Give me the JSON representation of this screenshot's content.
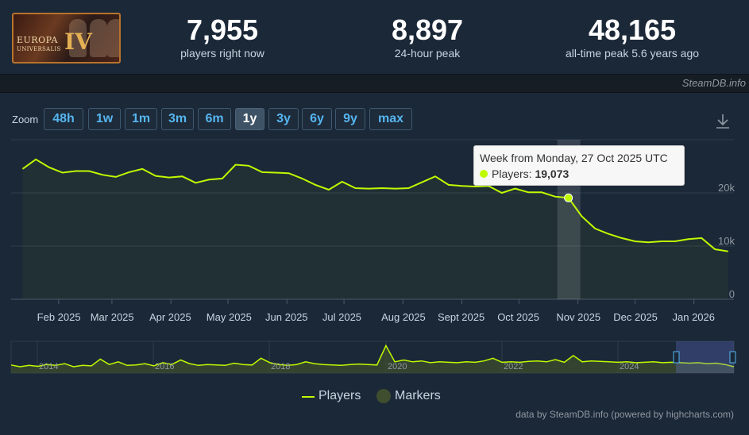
{
  "app": {
    "logo_line1": "EUROPA",
    "logo_line2": "UNIVERSALIS",
    "logo_numeral": "IV",
    "credit_top": "SteamDB.info",
    "credit_bottom": "data by SteamDB.info (powered by highcharts.com)"
  },
  "stats": [
    {
      "value": "7,955",
      "label": "players right now"
    },
    {
      "value": "8,897",
      "label": "24-hour peak"
    },
    {
      "value": "48,165",
      "label": "all-time peak 5.6 years ago"
    }
  ],
  "zoom": {
    "label": "Zoom",
    "buttons": [
      "48h",
      "1w",
      "1m",
      "3m",
      "6m",
      "1y",
      "3y",
      "6y",
      "9y",
      "max"
    ],
    "active": "1y"
  },
  "tooltip": {
    "title": "Week from Monday, 27 Oct 2025 UTC",
    "series_label": "Players: ",
    "value": "19,073"
  },
  "legend": {
    "players": "Players",
    "markers": "Markers"
  },
  "colors": {
    "series": "#bffa00",
    "marker": "#3e4e2e",
    "accent": "#55b5ef"
  },
  "icons": {
    "download": "download-icon"
  },
  "chart_data": {
    "type": "line",
    "series_name": "Players",
    "x_labels": [
      "Feb 2025",
      "Mar 2025",
      "Apr 2025",
      "May 2025",
      "Jun 2025",
      "Jul 2025",
      "Aug 2025",
      "Sept 2025",
      "Oct 2025",
      "Nov 2025",
      "Dec 2025",
      "Jan 2026"
    ],
    "y_ticks": [
      "0",
      "10k",
      "20k"
    ],
    "ylim": [
      0,
      30000
    ],
    "grid": true,
    "navigator_years": [
      "2014",
      "2016",
      "2018",
      "2020",
      "2022",
      "2024"
    ],
    "x": [
      "2025-01-13",
      "2025-01-20",
      "2025-01-27",
      "2025-02-03",
      "2025-02-10",
      "2025-02-17",
      "2025-02-24",
      "2025-03-03",
      "2025-03-10",
      "2025-03-17",
      "2025-03-24",
      "2025-03-31",
      "2025-04-07",
      "2025-04-14",
      "2025-04-21",
      "2025-04-28",
      "2025-05-05",
      "2025-05-12",
      "2025-05-19",
      "2025-05-26",
      "2025-06-02",
      "2025-06-09",
      "2025-06-16",
      "2025-06-23",
      "2025-06-30",
      "2025-07-07",
      "2025-07-14",
      "2025-07-21",
      "2025-07-28",
      "2025-08-04",
      "2025-08-11",
      "2025-08-18",
      "2025-08-25",
      "2025-09-01",
      "2025-09-08",
      "2025-09-15",
      "2025-09-22",
      "2025-09-29",
      "2025-10-06",
      "2025-10-13",
      "2025-10-20",
      "2025-10-27",
      "2025-11-03",
      "2025-11-10",
      "2025-11-17",
      "2025-11-24",
      "2025-12-01",
      "2025-12-08",
      "2025-12-15",
      "2025-12-22",
      "2025-12-29",
      "2026-01-05",
      "2026-01-12",
      "2026-01-19"
    ],
    "values": [
      24500,
      26300,
      24800,
      23800,
      24100,
      24100,
      23400,
      23000,
      23900,
      24500,
      23200,
      22900,
      23100,
      21900,
      22500,
      22700,
      25300,
      25100,
      23900,
      23800,
      23700,
      22700,
      21500,
      20600,
      22100,
      20900,
      20800,
      20900,
      20800,
      20900,
      22000,
      23100,
      21500,
      21300,
      21200,
      21300,
      20000,
      20800,
      20100,
      20100,
      19300,
      19073,
      15600,
      13300,
      12300,
      11500,
      10900,
      10700,
      10900,
      10900,
      11300,
      11500,
      9400,
      9000
    ],
    "navigator_values": [
      0.55,
      0.35,
      0.5,
      0.4,
      0.6,
      0.5,
      0.7,
      0.35,
      0.5,
      0.45,
      1.2,
      0.6,
      0.9,
      0.5,
      0.55,
      0.7,
      0.45,
      0.8,
      0.6,
      1.1,
      0.7,
      0.5,
      0.6,
      0.55,
      0.5,
      0.75,
      0.6,
      0.55,
      1.3,
      0.8,
      0.6,
      0.5,
      0.6,
      0.9,
      0.7,
      0.6,
      0.55,
      0.5,
      0.6,
      0.65,
      0.6,
      0.55,
      2.7,
      0.9,
      1.1,
      0.9,
      1.0,
      0.8,
      0.9,
      0.85,
      0.8,
      0.9,
      0.85,
      1.0,
      1.3,
      0.85,
      0.9,
      0.85,
      0.95,
      1.0,
      0.9,
      1.15,
      0.85,
      1.6,
      0.9,
      1.0,
      0.95,
      0.9,
      0.85,
      0.9,
      0.8,
      0.85,
      0.9,
      0.8,
      0.85,
      0.8,
      0.75,
      0.8,
      0.7,
      0.75,
      0.6,
      0.35
    ]
  }
}
